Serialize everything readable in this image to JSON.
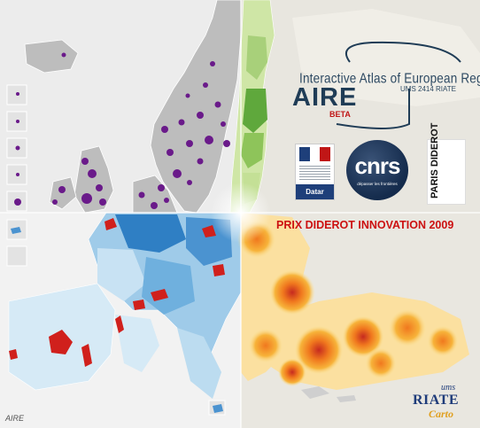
{
  "title": {
    "main": "Interactive Atlas of European Regions",
    "sub": "UMS 2414 RIATE",
    "acronym": "AIRE",
    "badge": "BETA"
  },
  "award": "PRIX DIDEROT INNOVATION 2009",
  "logos": {
    "datar": "Datar",
    "cnrs": "cnrs",
    "cnrs_tagline": "dépasser les frontières",
    "paris_diderot_prefix": "PARIS",
    "paris_diderot_name": "DIDEROT"
  },
  "riate_logo": {
    "ums": "ums",
    "name": "RIATE",
    "carto": "Carto"
  },
  "watermark": "AIRE",
  "colors": {
    "sea": "#eaeaea",
    "land_grey": "#b8b8b8",
    "dots": "#6a1a8a",
    "green_light": "#dff0c0",
    "green_dark": "#3a8a2a",
    "blue_light": "#d6eaf6",
    "blue_dark": "#1f6fb8",
    "red_highlight": "#d0201c",
    "yellow": "#fbe9a6",
    "orange": "#f49a2a",
    "dark_red": "#c62a1f",
    "title_blue": "#2e4a63",
    "award_red": "#cc1010"
  }
}
